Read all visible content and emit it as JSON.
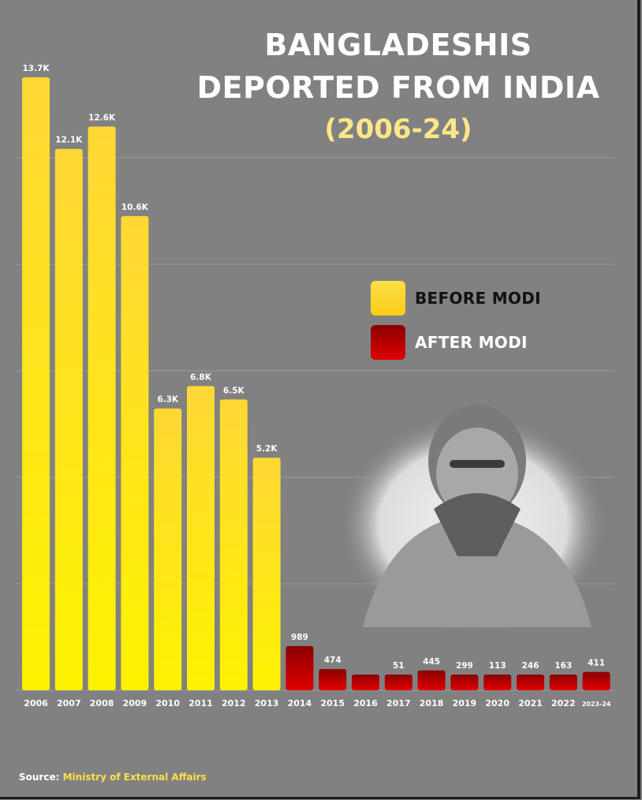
{
  "chart_data": {
    "type": "bar",
    "title_line1": "BANGLADESHIS",
    "title_line2": "DEPORTED FROM INDIA",
    "subtitle": "(2006-24)",
    "categories": [
      "2006",
      "2007",
      "2008",
      "2009",
      "2010",
      "2011",
      "2012",
      "2013",
      "2014",
      "2015",
      "2016",
      "2017",
      "2018",
      "2019",
      "2020",
      "2021",
      "2022",
      "2023-24"
    ],
    "values": [
      13700,
      12100,
      12600,
      10600,
      6300,
      6800,
      6500,
      5200,
      989,
      474,
      308,
      51,
      445,
      299,
      113,
      246,
      163,
      411
    ],
    "data_labels": [
      "13.7K",
      "12.1K",
      "12.6K",
      "10.6K",
      "6.3K",
      "6.8K",
      "6.5K",
      "5.2K",
      "989",
      "474",
      "",
      "51",
      "445",
      "299",
      "113",
      "246",
      "163",
      "411"
    ],
    "ylim": [
      0,
      13700
    ],
    "grid": true,
    "legend": {
      "placement": "right",
      "before_label": "BEFORE MODI",
      "after_label": "AFTER MODI",
      "before_color": "#facc15",
      "after_color": "#c00000"
    },
    "series_split_index": 8
  },
  "source": {
    "label": "Source:",
    "value": "Ministry of External Affairs"
  }
}
